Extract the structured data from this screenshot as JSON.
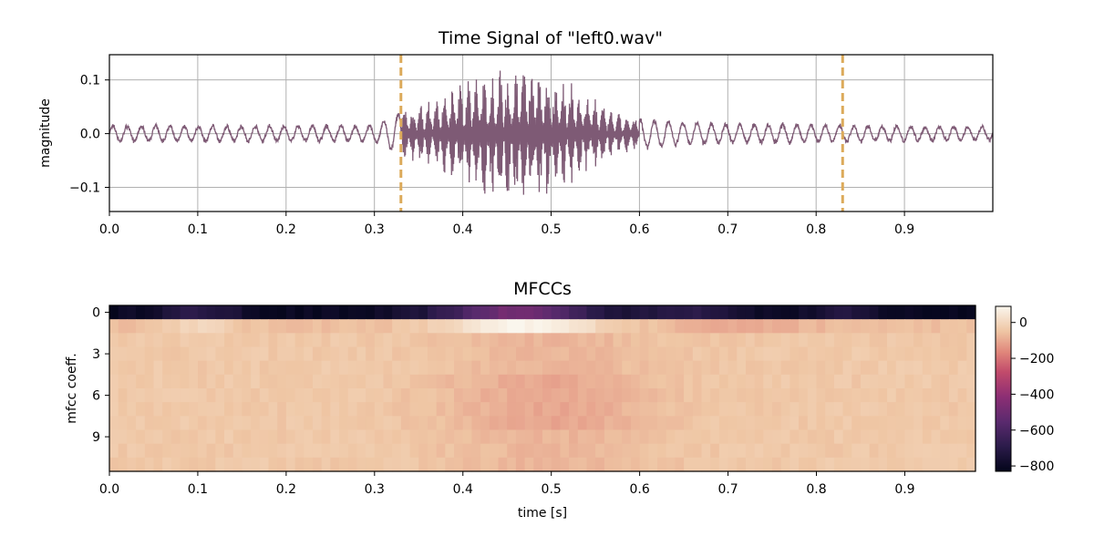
{
  "chart_data": [
    {
      "type": "line",
      "title": "Time Signal of \"left0.wav\"",
      "xlabel": "",
      "ylabel": "magnitude",
      "xlim": [
        0.0,
        1.0
      ],
      "ylim": [
        -0.145,
        0.147
      ],
      "grid": true,
      "x_ticks": [
        "0.0",
        "0.1",
        "0.2",
        "0.3",
        "0.4",
        "0.5",
        "0.6",
        "0.7",
        "0.8",
        "0.9"
      ],
      "y_ticks": [
        "0.1",
        "0.0",
        "−0.1"
      ],
      "y_tick_values": [
        0.1,
        0.0,
        -0.1
      ],
      "vertical_markers": [
        0.33,
        0.83
      ],
      "marker_color": "#dcaa5a",
      "line_color": "#7e5a75",
      "envelope": {
        "t": [
          0.0,
          0.3,
          0.33,
          0.36,
          0.38,
          0.4,
          0.42,
          0.45,
          0.48,
          0.5,
          0.53,
          0.55,
          0.57,
          0.6,
          0.65,
          0.7,
          0.8,
          0.9,
          1.0
        ],
        "amplitude": [
          0.016,
          0.016,
          0.045,
          0.06,
          0.075,
          0.1,
          0.12,
          0.13,
          0.13,
          0.12,
          0.09,
          0.07,
          0.04,
          0.03,
          0.024,
          0.02,
          0.018,
          0.015,
          0.014
        ]
      }
    },
    {
      "type": "heatmap",
      "title": "MFCCs",
      "xlabel": "time [s]",
      "ylabel": "mfcc coeff.",
      "xlim": [
        0.0,
        0.98
      ],
      "ylim": [
        0,
        12
      ],
      "x_ticks": [
        "0.0",
        "0.1",
        "0.2",
        "0.3",
        "0.4",
        "0.5",
        "0.6",
        "0.7",
        "0.8",
        "0.9"
      ],
      "y_ticks": [
        "0",
        "3",
        "6",
        "9"
      ],
      "colorbar": {
        "ticks": [
          "0",
          "−200",
          "−400",
          "−600",
          "−800"
        ],
        "tick_values": [
          0,
          -200,
          -400,
          -600,
          -800
        ],
        "range": [
          -830,
          90
        ]
      },
      "rows": 12,
      "cols": 98
    }
  ]
}
